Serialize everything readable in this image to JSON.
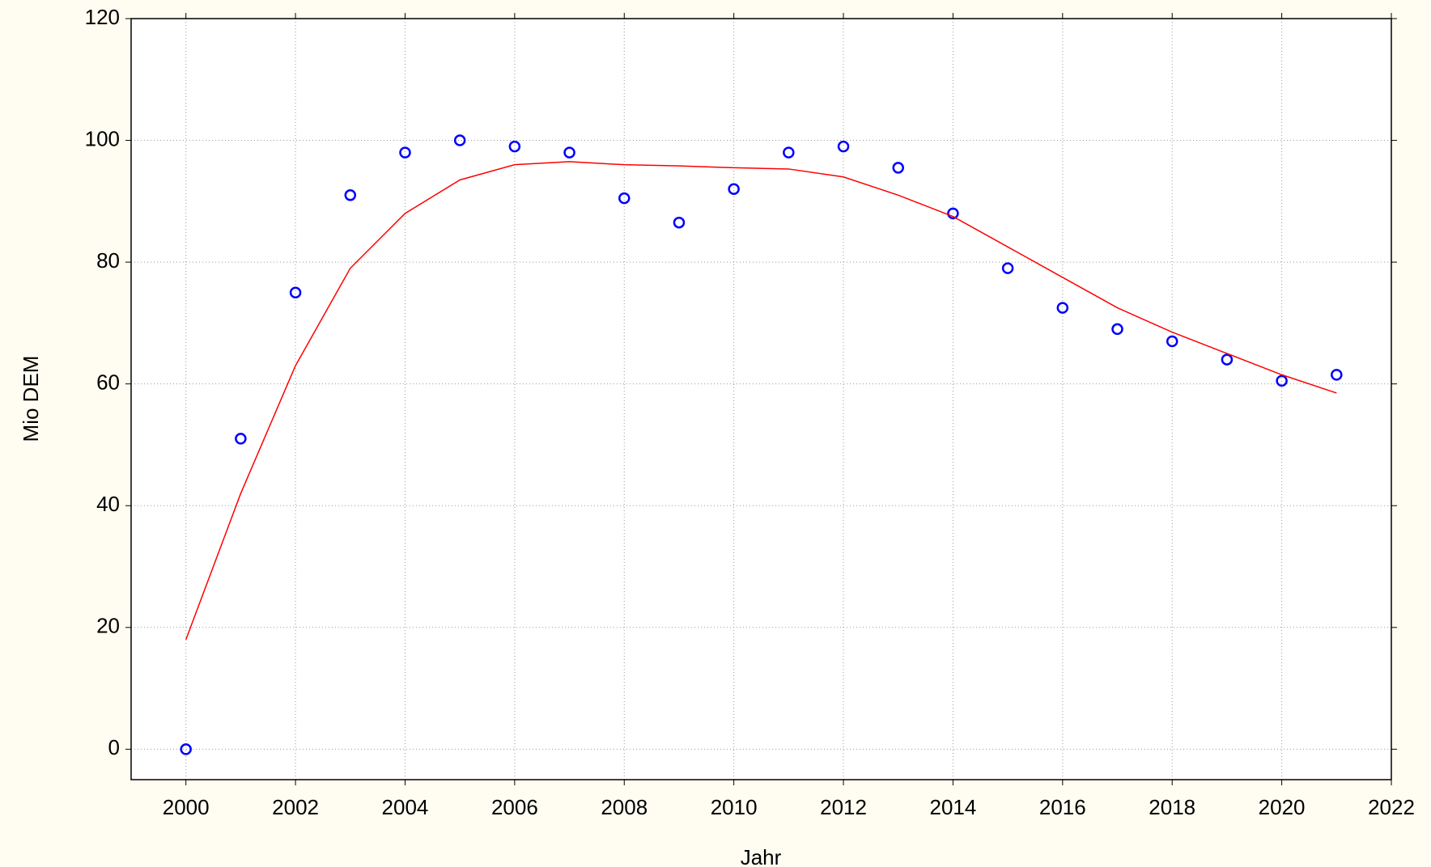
{
  "chart_data": {
    "type": "scatter",
    "x_label": "Jahr",
    "y_label": "Mio DEM",
    "x": [
      2000,
      2001,
      2002,
      2003,
      2004,
      2005,
      2006,
      2007,
      2008,
      2009,
      2010,
      2011,
      2012,
      2013,
      2014,
      2015,
      2016,
      2017,
      2018,
      2019,
      2020,
      2021
    ],
    "series": [
      {
        "style": "markers",
        "color": "#0000ff",
        "values": [
          0,
          51,
          75,
          91,
          98,
          100,
          99,
          98,
          90.5,
          86.5,
          92,
          98,
          99,
          95.5,
          88,
          79,
          72.5,
          69,
          67,
          64,
          60.5,
          61.5
        ]
      },
      {
        "style": "line",
        "color": "#ff0000",
        "values": [
          18,
          42,
          63,
          79,
          88,
          93.5,
          96,
          96.5,
          96,
          95.8,
          95.5,
          95.3,
          94,
          91,
          87.5,
          82.5,
          77.5,
          72.5,
          68.5,
          65,
          61.5,
          58.5
        ]
      }
    ],
    "xlim": [
      1999,
      2022
    ],
    "xticks": [
      2000,
      2002,
      2004,
      2006,
      2008,
      2010,
      2012,
      2014,
      2016,
      2018,
      2020,
      2022
    ],
    "ylim": [
      -5,
      120
    ],
    "yticks": [
      0,
      20,
      40,
      60,
      80,
      100,
      120
    ],
    "grid": true
  }
}
